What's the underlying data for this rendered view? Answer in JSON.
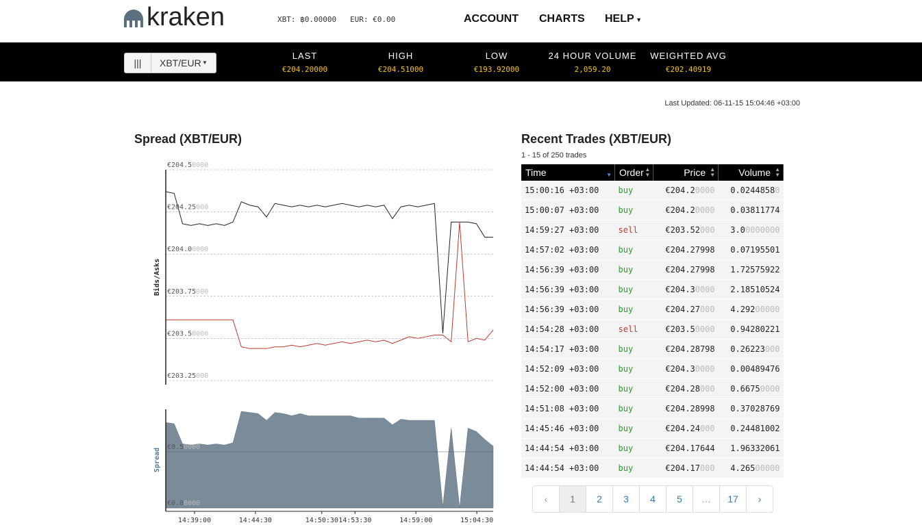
{
  "header": {
    "logo": "kraken",
    "balances": [
      {
        "label": "XBT:",
        "value": "฿0.00000"
      },
      {
        "label": "EUR:",
        "value": "€0.00"
      }
    ],
    "nav": [
      "ACCOUNT",
      "CHARTS",
      "HELP"
    ]
  },
  "ticker": {
    "pair": "XBT/EUR",
    "stats": [
      {
        "label": "LAST",
        "value": "€204.20000"
      },
      {
        "label": "HIGH",
        "value": "€204.51000"
      },
      {
        "label": "LOW",
        "value": "€193.92000"
      },
      {
        "label": "24 HOUR VOLUME",
        "value": "2,059.20"
      },
      {
        "label": "WEIGHTED AVG",
        "value": "€202.40919"
      }
    ]
  },
  "last_updated": "Last Updated: 06-11-15 15:04:46 +03:00",
  "chart_data": [
    {
      "type": "line",
      "title": "Spread (XBT/EUR)",
      "y_label": "Bids/Asks",
      "ylim": [
        203.25,
        204.5
      ],
      "yticks": [
        {
          "value": 204.5,
          "label": "€204.50000"
        },
        {
          "value": 204.25,
          "label": "€204.25000"
        },
        {
          "value": 204.0,
          "label": "€204.00000"
        },
        {
          "value": 203.75,
          "label": "€203.75000"
        },
        {
          "value": 203.5,
          "label": "€203.50000"
        },
        {
          "value": 203.25,
          "label": "€203.25000"
        }
      ],
      "series": [
        {
          "color": "#222222",
          "values": [
            204.37,
            204.36,
            204.18,
            204.17,
            204.18,
            204.17,
            204.18,
            204.17,
            204.19,
            204.31,
            204.29,
            204.28,
            204.22,
            204.3,
            204.29,
            204.28,
            204.29,
            204.28,
            204.29,
            204.28,
            204.29,
            204.3,
            204.29,
            204.28,
            204.29,
            204.28,
            204.29,
            204.21,
            204.28,
            204.29,
            204.28,
            204.29,
            204.3,
            203.53,
            204.19,
            204.19,
            204.19,
            204.18,
            204.1,
            204.1
          ]
        },
        {
          "color": "#c0392b",
          "values": [
            203.61,
            203.61,
            203.61,
            203.61,
            203.61,
            203.61,
            203.61,
            203.61,
            203.61,
            203.45,
            203.44,
            203.44,
            203.44,
            203.45,
            203.45,
            203.46,
            203.45,
            203.46,
            203.47,
            203.46,
            203.47,
            203.48,
            203.47,
            203.48,
            203.49,
            203.48,
            203.49,
            203.47,
            203.49,
            203.51,
            203.5,
            203.51,
            203.52,
            203.52,
            203.48,
            204.19,
            203.48,
            203.5,
            203.49,
            203.55
          ]
        }
      ]
    },
    {
      "type": "area",
      "y_label": "Spread",
      "color": "#7a8c9a",
      "ylim": [
        0,
        0.9
      ],
      "yticks": [
        {
          "value": 0,
          "label": "€0.00000"
        },
        {
          "value": 0.5,
          "label": "€0.50000"
        }
      ],
      "xlim": [
        "14:36:24",
        "15:05:59"
      ],
      "xticks": [
        "14:39:00",
        "14:44:30",
        "14:50:30",
        "14:53:30",
        "14:59:00",
        "15:04:30"
      ],
      "values": [
        0.76,
        0.75,
        0.57,
        0.56,
        0.57,
        0.56,
        0.57,
        0.56,
        0.58,
        0.86,
        0.85,
        0.84,
        0.78,
        0.85,
        0.84,
        0.82,
        0.84,
        0.82,
        0.82,
        0.82,
        0.82,
        0.82,
        0.82,
        0.8,
        0.8,
        0.8,
        0.8,
        0.74,
        0.79,
        0.78,
        0.78,
        0.78,
        0.78,
        0.01,
        0.71,
        0.0,
        0.71,
        0.68,
        0.61,
        0.55
      ]
    }
  ],
  "trades": {
    "title": "Recent Trades (XBT/EUR)",
    "summary": "1 - 15 of 250 trades",
    "columns": [
      "Time",
      "Order",
      "Price",
      "Volume"
    ],
    "rows": [
      [
        "15:00:16 +03:00",
        "buy",
        "€204.20000",
        "0.02448580"
      ],
      [
        "15:00:07 +03:00",
        "buy",
        "€204.20000",
        "0.03811774"
      ],
      [
        "14:59:27 +03:00",
        "sell",
        "€203.52000",
        "3.00000000"
      ],
      [
        "14:57:02 +03:00",
        "buy",
        "€204.27998",
        "0.07195501"
      ],
      [
        "14:56:39 +03:00",
        "buy",
        "€204.27998",
        "1.72575922"
      ],
      [
        "14:56:39 +03:00",
        "buy",
        "€204.30000",
        "2.18510524"
      ],
      [
        "14:56:39 +03:00",
        "buy",
        "€204.27000",
        "4.29200000"
      ],
      [
        "14:54:28 +03:00",
        "sell",
        "€203.50000",
        "0.94280221"
      ],
      [
        "14:54:17 +03:00",
        "buy",
        "€204.28798",
        "0.26223000"
      ],
      [
        "14:52:09 +03:00",
        "buy",
        "€204.30000",
        "0.00489476"
      ],
      [
        "14:52:00 +03:00",
        "buy",
        "€204.28000",
        "0.66750000"
      ],
      [
        "14:51:08 +03:00",
        "buy",
        "€204.28998",
        "0.37028769"
      ],
      [
        "14:45:46 +03:00",
        "buy",
        "€204.24000",
        "0.24481002"
      ],
      [
        "14:44:54 +03:00",
        "buy",
        "€204.17644",
        "1.96332061"
      ],
      [
        "14:44:54 +03:00",
        "buy",
        "€204.17000",
        "4.26500000"
      ]
    ]
  },
  "pagination": [
    "‹",
    "1",
    "2",
    "3",
    "4",
    "5",
    "…",
    "17",
    "›"
  ]
}
